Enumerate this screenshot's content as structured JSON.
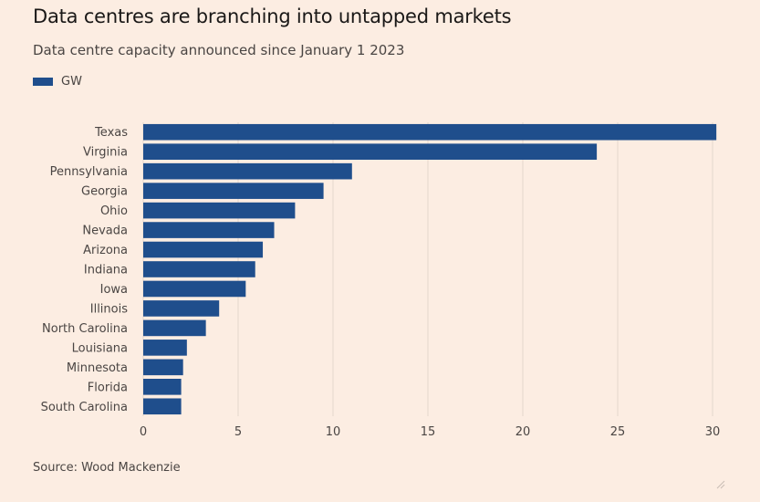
{
  "header": {
    "title": "Data centres are branching into untapped markets",
    "subtitle": "Data centre capacity announced since January 1 2023"
  },
  "footer": {
    "source": "Source: Wood Mackenzie"
  },
  "colors": {
    "bar": "#1f4e8c",
    "grid": "#e4d6cc",
    "background": "#fcede2"
  },
  "chart_data": {
    "type": "bar",
    "orientation": "horizontal",
    "title": "Data centres are branching into untapped markets",
    "subtitle": "Data centre capacity announced since January 1 2023",
    "legend": {
      "placement": "top-left",
      "entries": [
        "GW"
      ]
    },
    "categories": [
      "Texas",
      "Virginia",
      "Pennsylvania",
      "Georgia",
      "Ohio",
      "Nevada",
      "Arizona",
      "Indiana",
      "Iowa",
      "Illinois",
      "North Carolina",
      "Louisiana",
      "Minnesota",
      "Florida",
      "South Carolina"
    ],
    "series": [
      {
        "name": "GW",
        "values": [
          30.2,
          23.9,
          11.0,
          9.5,
          8.0,
          6.9,
          6.3,
          5.9,
          5.4,
          4.0,
          3.3,
          2.3,
          2.1,
          2.0,
          2.0
        ]
      }
    ],
    "xlim": [
      0,
      30
    ],
    "xticks": [
      0,
      5,
      10,
      15,
      20,
      25,
      30
    ],
    "grid": "vertical"
  }
}
